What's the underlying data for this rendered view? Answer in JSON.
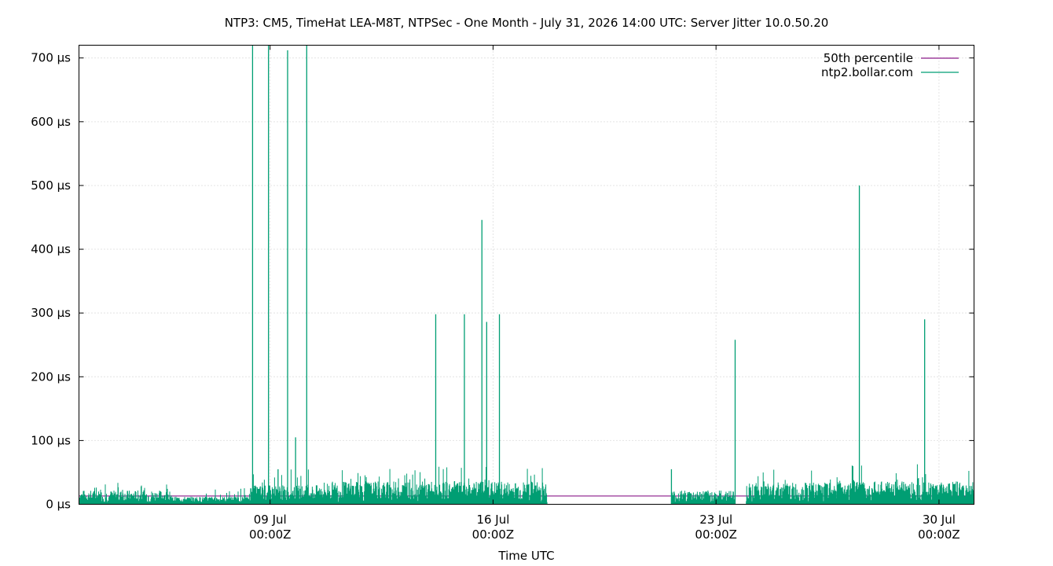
{
  "chart_data": {
    "type": "line",
    "title": "NTP3: CM5, TimeHat LEA-M8T, NTPSec - One Month - July 31, 2026 14:00 UTC: Server Jitter 10.0.50.20",
    "xlabel": "Time UTC",
    "ylabel": "",
    "x_range_days": [
      3.0,
      31.1
    ],
    "ylim": [
      0,
      720
    ],
    "grid": true,
    "legend_position": "top-right",
    "x_ticks": [
      {
        "day": 9,
        "date": "09 Jul",
        "time": "00:00Z"
      },
      {
        "day": 16,
        "date": "16 Jul",
        "time": "00:00Z"
      },
      {
        "day": 23,
        "date": "23 Jul",
        "time": "00:00Z"
      },
      {
        "day": 30,
        "date": "30 Jul",
        "time": "00:00Z"
      }
    ],
    "y_ticks": [
      {
        "value": 0,
        "label": "0 µs"
      },
      {
        "value": 100,
        "label": "100 µs"
      },
      {
        "value": 200,
        "label": "200 µs"
      },
      {
        "value": 300,
        "label": "300 µs"
      },
      {
        "value": 400,
        "label": "400 µs"
      },
      {
        "value": 500,
        "label": "500 µs"
      },
      {
        "value": 600,
        "label": "600 µs"
      },
      {
        "value": 700,
        "label": "700 µs"
      }
    ],
    "series": [
      {
        "name": "50th percentile",
        "color": "#8b1a89",
        "style": "line",
        "points": [
          [
            3.0,
            13
          ],
          [
            31.1,
            13
          ]
        ]
      },
      {
        "name": "ntp2.bollar.com",
        "color": "#009e73",
        "style": "jitter-band",
        "segments": [
          {
            "start": 3.0,
            "end": 5.8,
            "low": 2,
            "high": 22,
            "spikes_max": 34
          },
          {
            "start": 5.8,
            "end": 8.35,
            "low": 3,
            "high": 12,
            "spikes_max": 26
          },
          {
            "start": 8.35,
            "end": 10.6,
            "low": 4,
            "high": 30,
            "spikes_max": 55
          },
          {
            "start": 10.6,
            "end": 17.7,
            "low": 3,
            "high": 36,
            "spikes_max": 60
          },
          {
            "start": 21.6,
            "end": 23.6,
            "low": 2,
            "high": 22,
            "spikes_max": 30
          },
          {
            "start": 23.95,
            "end": 26.8,
            "low": 3,
            "high": 34,
            "spikes_max": 58
          },
          {
            "start": 26.8,
            "end": 27.1,
            "low": 8,
            "high": 40,
            "spikes_max": 90
          },
          {
            "start": 27.1,
            "end": 31.1,
            "low": 5,
            "high": 36,
            "spikes_max": 64
          }
        ],
        "spikes": [
          [
            8.45,
            720
          ],
          [
            8.95,
            720
          ],
          [
            9.25,
            55
          ],
          [
            9.55,
            712
          ],
          [
            9.8,
            105
          ],
          [
            10.15,
            720
          ],
          [
            14.2,
            298
          ],
          [
            15.1,
            298
          ],
          [
            15.65,
            446
          ],
          [
            15.8,
            286
          ],
          [
            16.2,
            298
          ],
          [
            21.6,
            55
          ],
          [
            23.6,
            258
          ],
          [
            27.5,
            500
          ],
          [
            29.55,
            290
          ]
        ]
      }
    ]
  }
}
